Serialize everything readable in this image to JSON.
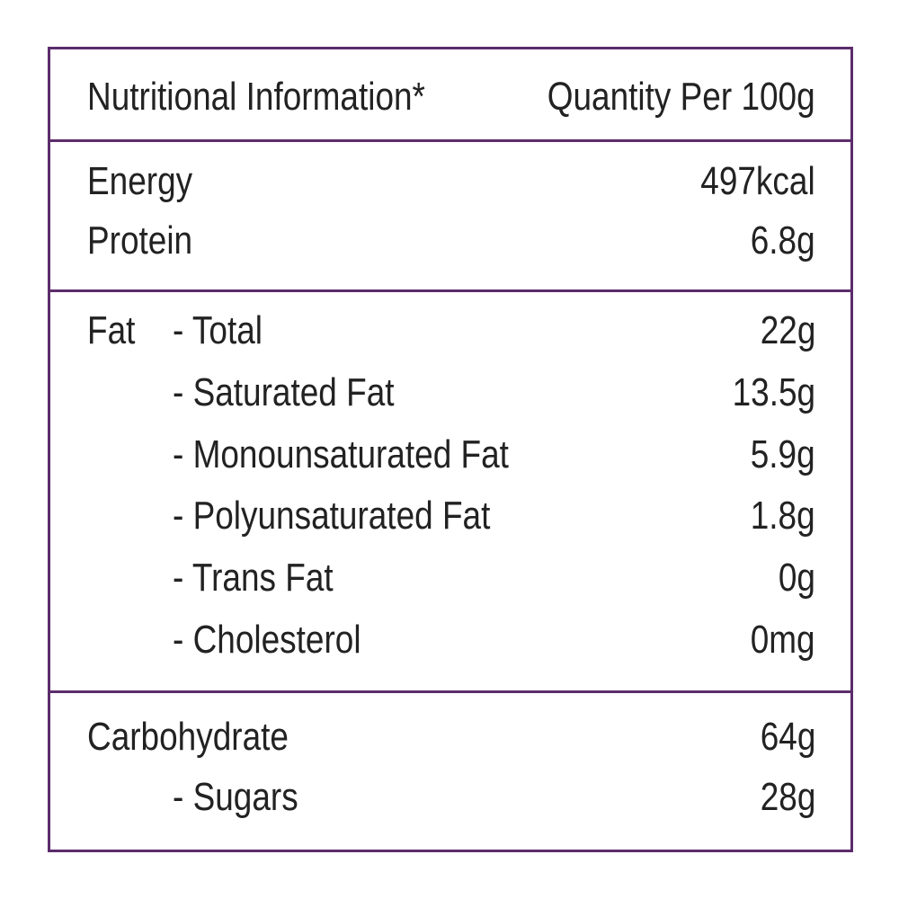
{
  "header": {
    "left": "Nutritional Information*",
    "right": "Quantity Per 100g"
  },
  "sections": [
    {
      "rows": [
        {
          "label": "Energy",
          "value": "497kcal"
        },
        {
          "label": "Protein",
          "value": "6.8g"
        }
      ]
    },
    {
      "rows": [
        {
          "prefix": "Fat",
          "label": "- Total",
          "value": "22g"
        },
        {
          "label": "- Saturated Fat",
          "value": "13.5g"
        },
        {
          "label": "- Monounsaturated Fat",
          "value": "5.9g"
        },
        {
          "label": "- Polyunsaturated Fat",
          "value": "1.8g"
        },
        {
          "label": "- Trans Fat",
          "value": "0g"
        },
        {
          "label": "- Cholesterol",
          "value": "0mg"
        }
      ]
    },
    {
      "rows": [
        {
          "label": "Carbohydrate",
          "value": "64g"
        },
        {
          "label": "- Sugars",
          "value": "28g"
        }
      ]
    }
  ]
}
